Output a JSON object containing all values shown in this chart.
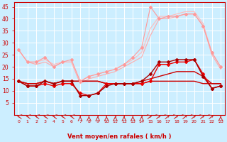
{
  "x": [
    0,
    1,
    2,
    3,
    4,
    5,
    6,
    7,
    8,
    9,
    10,
    11,
    12,
    13,
    14,
    15,
    16,
    17,
    18,
    19,
    20,
    21,
    22,
    23
  ],
  "series": [
    {
      "color": "#ffaaaa",
      "marker": null,
      "lw": 0.8,
      "ms": 0,
      "values": [
        27,
        22,
        21,
        22,
        20,
        22,
        22,
        13,
        15,
        16,
        17,
        18,
        20,
        22,
        24,
        33,
        40,
        40,
        41,
        42,
        42,
        37,
        25,
        19
      ]
    },
    {
      "color": "#ffbbbb",
      "marker": null,
      "lw": 0.8,
      "ms": 0,
      "values": [
        27,
        22,
        22,
        23,
        21,
        22,
        22,
        14,
        16,
        17,
        18,
        19,
        21,
        23,
        26,
        36,
        41,
        41,
        42,
        43,
        43,
        38,
        26,
        20
      ]
    },
    {
      "color": "#ff9999",
      "marker": "D",
      "lw": 0.8,
      "ms": 2,
      "values": [
        27,
        22,
        22,
        24,
        20,
        22,
        23,
        14,
        16,
        17,
        18,
        19,
        21,
        24,
        28,
        45,
        40,
        41,
        41,
        42,
        42,
        37,
        26,
        20
      ]
    },
    {
      "color": "#cc0000",
      "marker": null,
      "lw": 1.0,
      "ms": 0,
      "values": [
        14,
        13,
        13,
        14,
        13,
        14,
        14,
        14,
        14,
        14,
        13,
        13,
        13,
        13,
        13,
        14,
        14,
        14,
        14,
        14,
        14,
        13,
        13,
        13
      ]
    },
    {
      "color": "#cc0000",
      "marker": null,
      "lw": 1.0,
      "ms": 0,
      "values": [
        14,
        13,
        13,
        14,
        13,
        14,
        14,
        14,
        14,
        14,
        13,
        13,
        13,
        13,
        14,
        15,
        16,
        17,
        18,
        18,
        18,
        16,
        13,
        13
      ]
    },
    {
      "color": "#ee0000",
      "marker": "D",
      "lw": 1.0,
      "ms": 2,
      "values": [
        14,
        12,
        12,
        13,
        12,
        13,
        13,
        9,
        8,
        9,
        13,
        13,
        13,
        13,
        13,
        14,
        21,
        21,
        22,
        22,
        23,
        17,
        11,
        12
      ]
    },
    {
      "color": "#aa0000",
      "marker": "D",
      "lw": 1.0,
      "ms": 2,
      "values": [
        14,
        12,
        12,
        14,
        13,
        14,
        14,
        8,
        8,
        9,
        12,
        13,
        13,
        13,
        14,
        17,
        22,
        22,
        23,
        23,
        23,
        16,
        11,
        12
      ]
    }
  ],
  "arrow_angles": [
    225,
    225,
    225,
    225,
    225,
    225,
    225,
    270,
    270,
    270,
    270,
    270,
    270,
    270,
    270,
    315,
    315,
    315,
    315,
    315,
    315,
    315,
    315,
    270
  ],
  "xlabel": "Vent moyen/en rafales ( km/h )",
  "ylim": [
    0,
    47
  ],
  "yticks": [
    5,
    10,
    15,
    20,
    25,
    30,
    35,
    40,
    45
  ],
  "xlim": [
    -0.5,
    23.5
  ],
  "bg_color": "#cceeff",
  "grid_color": "#ffffff",
  "axis_color": "#cc0000",
  "text_color": "#cc0000",
  "arrow_color": "#cc3333"
}
